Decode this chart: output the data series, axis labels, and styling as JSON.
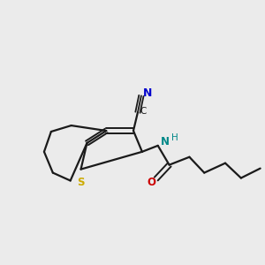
{
  "background_color": "#ebebeb",
  "bond_color": "#1a1a1a",
  "atom_colors": {
    "S": "#ccaa00",
    "N_cyano": "#0000cc",
    "N_amide": "#008888",
    "O": "#cc0000",
    "C": "#1a1a1a",
    "H": "#008888"
  },
  "figsize": [
    3.0,
    3.0
  ],
  "dpi": 100
}
